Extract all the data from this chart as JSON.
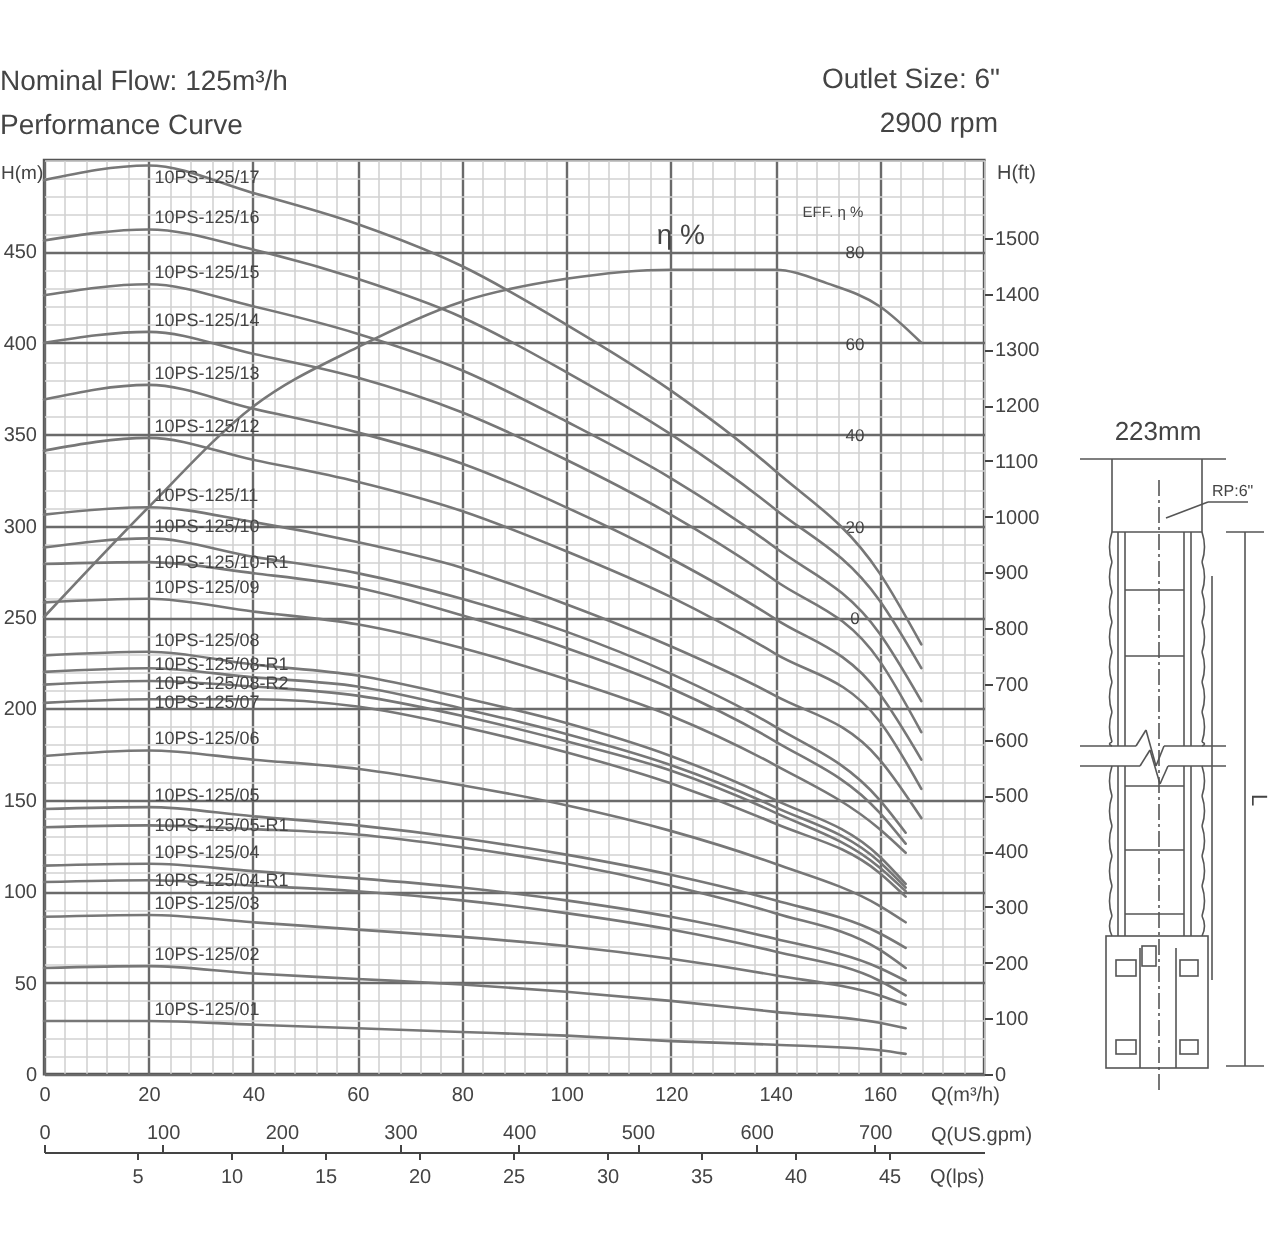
{
  "chart_data": {
    "type": "line",
    "title": "Nominal Flow: 125m³/h",
    "subtitle": "Performance Curve",
    "xlabel": "Q(m³/h)",
    "ylabel": "H(m)",
    "y2label": "H(ft)",
    "y3label": "EFF. η %",
    "x2label": "Q(US.gpm)",
    "xlim": [
      0,
      180
    ],
    "xticks": [
      0,
      20,
      40,
      60,
      80,
      100,
      120,
      140,
      160
    ],
    "ylim": [
      0,
      500
    ],
    "yticks": [
      0,
      50,
      100,
      150,
      200,
      250,
      300,
      350,
      400,
      450
    ],
    "y2lim": [
      0,
      1640
    ],
    "y2ticks": [
      0,
      100,
      200,
      300,
      400,
      500,
      600,
      700,
      800,
      900,
      1000,
      1100,
      1200,
      1300,
      1400,
      1500
    ],
    "y3lim": [
      -100,
      100
    ],
    "y3ticks": [
      0,
      20,
      40,
      60,
      80
    ],
    "x2lim": [
      0,
      792
    ],
    "x2ticks": [
      0,
      100,
      200,
      300,
      400,
      500,
      600,
      700
    ],
    "grid": true,
    "series": [
      {
        "name": "10PS-125/17",
        "color": "#777777",
        "x": [
          0,
          20,
          40,
          60,
          80,
          100,
          120,
          140,
          160,
          168
        ],
        "values": [
          489,
          497,
          482,
          465,
          442,
          410,
          374,
          330,
          274,
          235
        ]
      },
      {
        "name": "10PS-125/16",
        "color": "#777777",
        "x": [
          0,
          20,
          40,
          60,
          80,
          100,
          120,
          140,
          160,
          168
        ],
        "values": [
          456,
          462,
          451,
          435,
          414,
          384,
          350,
          309,
          259,
          222
        ]
      },
      {
        "name": "10PS-125/15",
        "color": "#777777",
        "x": [
          0,
          20,
          40,
          60,
          80,
          100,
          120,
          140,
          160,
          168
        ],
        "values": [
          426,
          432,
          420,
          405,
          385,
          357,
          326,
          288,
          241,
          204
        ]
      },
      {
        "name": "10PS-125/14",
        "color": "#777777",
        "x": [
          0,
          20,
          40,
          60,
          80,
          100,
          120,
          140,
          160,
          168
        ],
        "values": [
          400,
          406,
          394,
          381,
          362,
          336,
          306,
          270,
          226,
          187
        ]
      },
      {
        "name": "10PS-125/13",
        "color": "#777777",
        "x": [
          0,
          20,
          40,
          60,
          80,
          100,
          120,
          140,
          160,
          168
        ],
        "values": [
          369,
          377,
          364,
          351,
          334,
          310,
          282,
          249,
          208,
          172
        ]
      },
      {
        "name": "10PS-125/12",
        "color": "#777777",
        "x": [
          0,
          20,
          40,
          60,
          80,
          100,
          120,
          140,
          160,
          168
        ],
        "values": [
          341,
          348,
          336,
          324,
          308,
          286,
          261,
          230,
          193,
          156
        ]
      },
      {
        "name": "10PS-125/11",
        "color": "#777777",
        "x": [
          0,
          20,
          40,
          60,
          80,
          100,
          120,
          140,
          160,
          168
        ],
        "values": [
          306,
          310,
          302,
          291,
          277,
          257,
          234,
          207,
          172,
          140
        ]
      },
      {
        "name": "10PS-125/10",
        "color": "#777777",
        "x": [
          0,
          20,
          40,
          60,
          80,
          100,
          120,
          140,
          160,
          165
        ],
        "values": [
          288,
          293,
          283,
          274,
          260,
          242,
          219,
          190,
          150,
          132
        ]
      },
      {
        "name": "10PS-125/10-R1",
        "color": "#777777",
        "x": [
          0,
          20,
          40,
          60,
          80,
          100,
          120,
          140,
          160,
          165
        ],
        "values": [
          279,
          280,
          274,
          266,
          251,
          233,
          211,
          182,
          143,
          126
        ]
      },
      {
        "name": "10PS-125/09",
        "color": "#777777",
        "x": [
          0,
          20,
          40,
          60,
          80,
          100,
          120,
          140,
          160,
          165
        ],
        "values": [
          258,
          260,
          253,
          246,
          233,
          216,
          196,
          169,
          134,
          121
        ]
      },
      {
        "name": "10PS-125/08",
        "color": "#777777",
        "x": [
          0,
          20,
          40,
          60,
          80,
          100,
          120,
          140,
          160,
          165
        ],
        "values": [
          229,
          231,
          224,
          218,
          206,
          192,
          174,
          150,
          119,
          104
        ]
      },
      {
        "name": "10PS-125/08-R1",
        "color": "#777777",
        "x": [
          0,
          20,
          40,
          60,
          80,
          100,
          120,
          140,
          160,
          165
        ],
        "values": [
          220,
          222,
          217,
          212,
          200,
          186,
          169,
          146,
          116,
          102
        ]
      },
      {
        "name": "10PS-125/08-R2",
        "color": "#777777",
        "x": [
          0,
          20,
          40,
          60,
          80,
          100,
          120,
          140,
          160,
          165
        ],
        "values": [
          213,
          215,
          212,
          207,
          196,
          182,
          166,
          143,
          113,
          100
        ]
      },
      {
        "name": "10PS-125/07",
        "color": "#777777",
        "x": [
          0,
          20,
          40,
          60,
          80,
          100,
          120,
          140,
          160,
          165
        ],
        "values": [
          203,
          205,
          205,
          201,
          190,
          176,
          159,
          137,
          110,
          97
        ]
      },
      {
        "name": "10PS-125/06",
        "color": "#777777",
        "x": [
          0,
          20,
          40,
          60,
          80,
          100,
          120,
          140,
          160,
          165
        ],
        "values": [
          174,
          177,
          172,
          167,
          158,
          147,
          133,
          115,
          92,
          83
        ]
      },
      {
        "name": "10PS-125/05",
        "color": "#777777",
        "x": [
          0,
          20,
          40,
          60,
          80,
          100,
          120,
          140,
          160,
          165
        ],
        "values": [
          145,
          146,
          141,
          136,
          129,
          120,
          109,
          95,
          77,
          69
        ]
      },
      {
        "name": "10PS-125/05-R1",
        "color": "#777777",
        "x": [
          0,
          20,
          40,
          60,
          80,
          100,
          120,
          140,
          160,
          165
        ],
        "values": [
          135,
          136,
          134,
          131,
          124,
          115,
          103,
          88,
          68,
          58
        ]
      },
      {
        "name": "10PS-125/04",
        "color": "#777777",
        "x": [
          0,
          20,
          40,
          60,
          80,
          100,
          120,
          140,
          160,
          165
        ],
        "values": [
          114,
          115,
          111,
          107,
          102,
          95,
          86,
          74,
          58,
          51
        ]
      },
      {
        "name": "10PS-125/04-R1",
        "color": "#777777",
        "x": [
          0,
          20,
          40,
          60,
          80,
          100,
          120,
          140,
          160,
          165
        ],
        "values": [
          105,
          106,
          103,
          100,
          95,
          88,
          79,
          67,
          51,
          43
        ]
      },
      {
        "name": "10PS-125/03",
        "color": "#777777",
        "x": [
          0,
          20,
          40,
          60,
          80,
          100,
          120,
          140,
          160,
          165
        ],
        "values": [
          86,
          87,
          83,
          79,
          75,
          70,
          63,
          54,
          43,
          38
        ]
      },
      {
        "name": "10PS-125/02",
        "color": "#777777",
        "x": [
          0,
          20,
          40,
          60,
          80,
          100,
          120,
          140,
          160,
          165
        ],
        "values": [
          58,
          59,
          55,
          52,
          49,
          45,
          40,
          34,
          28,
          25
        ]
      },
      {
        "name": "10PS-125/01",
        "color": "#777777",
        "x": [
          0,
          20,
          40,
          60,
          80,
          100,
          120,
          140,
          160,
          165
        ],
        "values": [
          29,
          29,
          27,
          25,
          23,
          21,
          18,
          16,
          13,
          11
        ]
      },
      {
        "name": "η %",
        "color": "#777777",
        "axis": "y3",
        "x": [
          0,
          20,
          40,
          60,
          80,
          100,
          120,
          130,
          140,
          150,
          160,
          168
        ],
        "values": [
          0,
          24,
          46,
          59,
          69,
          74,
          76,
          76,
          76,
          73,
          68,
          60
        ]
      }
    ],
    "annotations": [
      "Outlet Size: 6\"",
      "2900 rpm",
      "223mm",
      "RP:6\"",
      "L",
      "5",
      "10",
      "15",
      "20",
      "25",
      "30",
      "35",
      "40",
      "45",
      "Q(lps)"
    ]
  }
}
